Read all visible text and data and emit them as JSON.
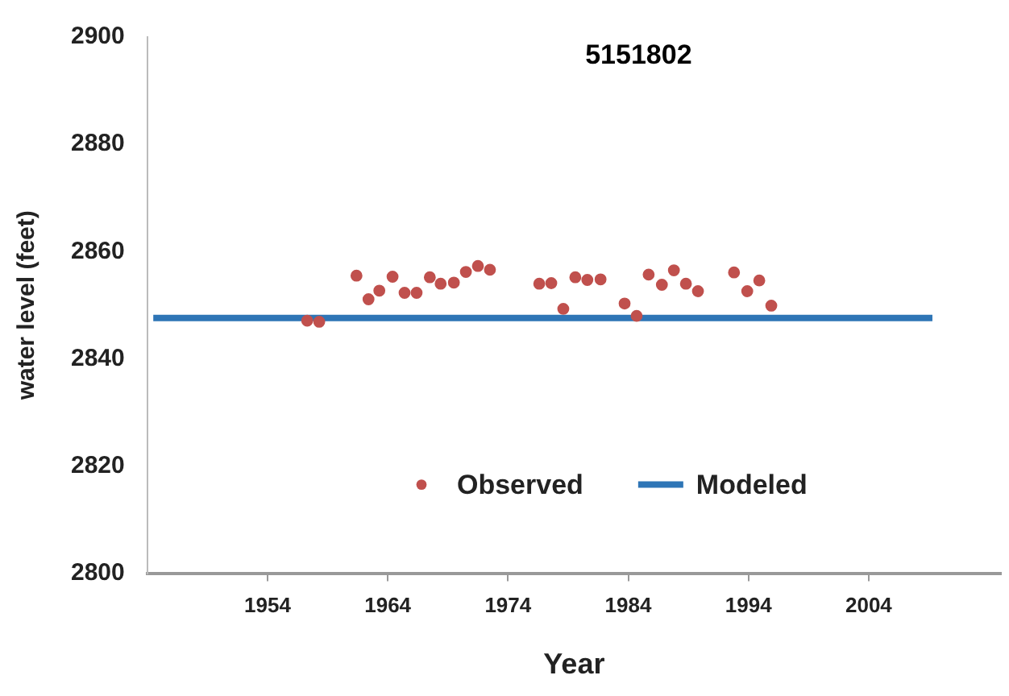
{
  "chart_data": {
    "type": "scatter",
    "title": "5151802",
    "xlabel": "Year",
    "ylabel": "water level (feet)",
    "xlim": [
      1944,
      2015
    ],
    "xticks": [
      1954,
      1964,
      1974,
      1984,
      1994,
      2004
    ],
    "ylim": [
      2800,
      2900
    ],
    "yticks": [
      2800,
      2820,
      2840,
      2860,
      2880,
      2900
    ],
    "grid": false,
    "legend": "bottom",
    "series": [
      {
        "name": "Observed",
        "marker": "circle",
        "color": "#c0504d",
        "x": [
          1957.3,
          1958.3,
          1961.4,
          1962.4,
          1963.3,
          1964.4,
          1965.4,
          1966.4,
          1967.5,
          1968.4,
          1969.5,
          1970.5,
          1971.5,
          1972.5,
          1976.6,
          1977.6,
          1978.6,
          1979.6,
          1980.6,
          1981.7,
          1983.7,
          1984.7,
          1985.7,
          1986.8,
          1987.8,
          1988.8,
          1989.8,
          1992.8,
          1993.9,
          1994.9,
          1995.9
        ],
        "values": [
          2847.1,
          2846.9,
          2855.5,
          2851.1,
          2852.7,
          2855.3,
          2852.3,
          2852.3,
          2855.2,
          2854.0,
          2854.2,
          2856.2,
          2857.3,
          2856.6,
          2854.0,
          2854.1,
          2849.3,
          2855.2,
          2854.7,
          2854.8,
          2850.3,
          2848.0,
          2855.7,
          2853.8,
          2856.5,
          2854.0,
          2852.6,
          2856.1,
          2852.6,
          2854.6,
          2849.9
        ]
      },
      {
        "name": "Modeled",
        "type": "line",
        "marker": "none",
        "color": "#2e75b6",
        "x": [
          1944.5,
          2009.3
        ],
        "values": [
          2847.6,
          2847.6
        ]
      }
    ]
  }
}
